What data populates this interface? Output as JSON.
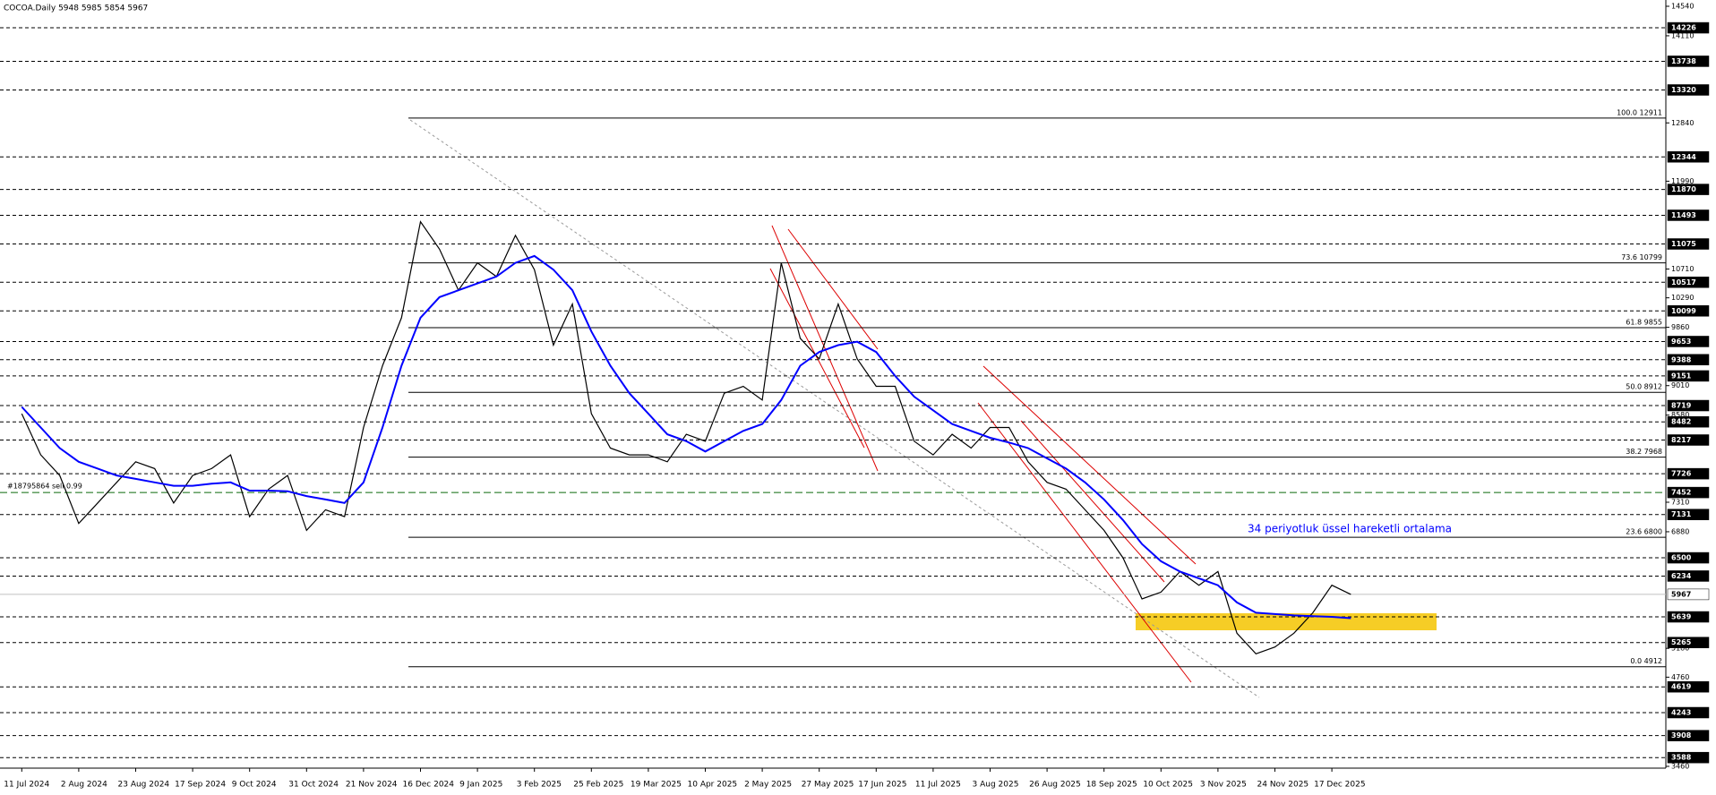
{
  "chart_data": {
    "type": "line",
    "title": "COCOA.Daily 5948 5985 5854 5967",
    "annotation": "34 periyotluk üssel hareketli ortalama",
    "categories": [
      "11 Jul 2024",
      null,
      null,
      "2 Aug 2024",
      null,
      null,
      "23 Aug 2024",
      null,
      null,
      "17 Sep 2024",
      null,
      null,
      "9 Oct 2024",
      null,
      null,
      "31 Oct 2024",
      null,
      null,
      "21 Nov 2024",
      null,
      null,
      "16 Dec 2024",
      null,
      null,
      "9 Jan 2025",
      null,
      null,
      "3 Feb 2025",
      null,
      null,
      "25 Feb 2025",
      null,
      null,
      "19 Mar 2025",
      null,
      null,
      "10 Apr 2025",
      null,
      null,
      "2 May 2025",
      null,
      null,
      "27 May 2025",
      null,
      null,
      "17 Jun 2025",
      null,
      null,
      "11 Jul 2025",
      null,
      null,
      "3 Aug 2025",
      null,
      null,
      "26 Aug 2025",
      null,
      null,
      "18 Sep 2025",
      null,
      null,
      "10 Oct 2025",
      null,
      null,
      "3 Nov 2025",
      null,
      null,
      "24 Nov 2025",
      null,
      null,
      "17 Dec 2025",
      null
    ],
    "series": [
      {
        "color": "#000000",
        "values": [
          8600,
          8000,
          7700,
          7000,
          7300,
          7600,
          7900,
          7800,
          7300,
          7700,
          7800,
          8000,
          7100,
          7500,
          7700,
          6900,
          7200,
          7100,
          8400,
          9300,
          10000,
          11400,
          11000,
          10400,
          10800,
          10600,
          11200,
          10700,
          9600,
          10200,
          8600,
          8100,
          8000,
          8000,
          7900,
          8300,
          8200,
          8900,
          9000,
          8800,
          10800,
          9700,
          9400,
          10200,
          9400,
          9000,
          9000,
          8200,
          8000,
          8300,
          8100,
          8400,
          8400,
          7900,
          7600,
          7500,
          7200,
          6900,
          6500,
          5900,
          6000,
          6300,
          6100,
          6300,
          5400,
          5100,
          5200,
          5400,
          5700,
          6100,
          5967
        ]
      },
      {
        "name": "34 periyotluk üssel hareketli ortalama",
        "color": "#0000ff",
        "values": [
          8700,
          8400,
          8100,
          7900,
          7800,
          7700,
          7650,
          7600,
          7550,
          7550,
          7580,
          7600,
          7480,
          7480,
          7470,
          7400,
          7350,
          7300,
          7600,
          8400,
          9300,
          10000,
          10300,
          10400,
          10500,
          10600,
          10800,
          10900,
          10700,
          10400,
          9800,
          9300,
          8900,
          8600,
          8300,
          8200,
          8050,
          8200,
          8350,
          8450,
          8800,
          9300,
          9500,
          9600,
          9650,
          9500,
          9150,
          8850,
          8650,
          8450,
          8350,
          8250,
          8180,
          8100,
          7950,
          7800,
          7600,
          7350,
          7050,
          6700,
          6450,
          6300,
          6200,
          6100,
          5850,
          5700,
          5680,
          5660,
          5650,
          5640,
          5620
        ]
      }
    ],
    "ylim": [
      3460,
      14540
    ],
    "yticks": [
      14540,
      14110,
      12840,
      11990,
      10710,
      10290,
      9860,
      9010,
      8580,
      7310,
      6880,
      5180,
      4760,
      3460
    ],
    "levels": [
      14226,
      13738,
      13320,
      12344,
      11870,
      11493,
      11075,
      10517,
      10099,
      9653,
      9388,
      9151,
      8719,
      8482,
      8217,
      7726,
      7131,
      6500,
      6234,
      5639,
      5265,
      4619,
      4243,
      3908,
      3588
    ],
    "current_price": 5967,
    "order": {
      "label": "#18795864 sell 0.99",
      "value": 7452
    },
    "fib_levels": [
      {
        "value": 12911,
        "label": "100.0 12911"
      },
      {
        "value": 10799,
        "label": "73.6 10799"
      },
      {
        "value": 9855,
        "label": "61.8 9855"
      },
      {
        "value": 8912,
        "label": "50.0 8912"
      },
      {
        "value": 7968,
        "label": "38.2 7968"
      },
      {
        "value": 6800,
        "label": "23.6 6800"
      },
      {
        "value": 4912,
        "label": "0.0 4912"
      }
    ]
  }
}
